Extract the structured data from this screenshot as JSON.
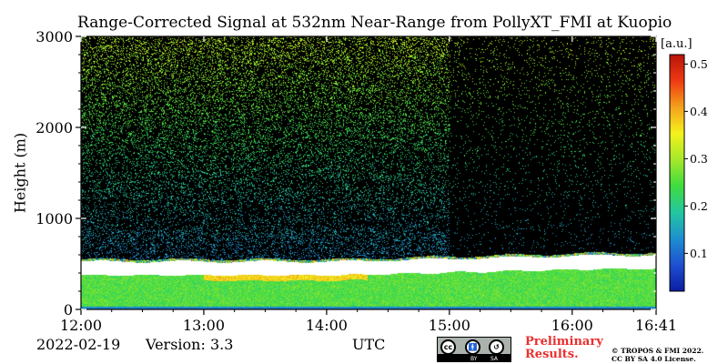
{
  "header": {
    "title": "Range-Corrected Signal at 532nm Near-Range from PollyXT_FMI at Kuopio"
  },
  "footer": {
    "date": "2022-02-19",
    "version": "Version: 3.3",
    "xunit": "UTC",
    "license_badge": {
      "icons": [
        "cc-icon",
        "by-icon",
        "sa-icon"
      ],
      "labels": [
        "BY",
        "SA"
      ]
    },
    "preliminary_line1": "Preliminary",
    "preliminary_line2": "Results.",
    "copyright_line1": "© TROPOS & FMI 2022.",
    "copyright_line2": "CC BY SA 4.0 License."
  },
  "colors": {
    "background": "#000000",
    "preliminary": "#e8302e",
    "colormap": [
      "#0a1ea0",
      "#1f4fd1",
      "#1d8fd0",
      "#23c7a0",
      "#3fdc3f",
      "#a4e82a",
      "#f4f21d",
      "#f5a11c",
      "#ee3a12",
      "#b8140b"
    ]
  },
  "chart_data": {
    "type": "heatmap",
    "title": "Range-Corrected Signal at 532nm Near-Range from PollyXT_FMI at Kuopio",
    "xlabel": "UTC",
    "ylabel": "Height (m)",
    "xlim": [
      "12:00",
      "16:41"
    ],
    "xlim_minutes_after_1200": [
      0,
      281
    ],
    "xticks": [
      "12:00",
      "13:00",
      "14:00",
      "15:00",
      "16:00",
      "16:41"
    ],
    "ylim": [
      0,
      3000
    ],
    "yticks": [
      0,
      1000,
      2000,
      3000
    ],
    "colorbar": {
      "label": "[a.u.]",
      "range": [
        0.02,
        0.52
      ],
      "ticks": [
        0.1,
        0.2,
        0.3,
        0.4,
        0.5
      ],
      "colormap": "jet"
    },
    "features": {
      "saturated_layer_top_m": [
        530,
        600
      ],
      "saturated_layer_bottom_m": [
        380,
        450
      ],
      "boundary_layer_signal": 0.25,
      "noise_region": "sparse speckle above ~400 m, denser before 15:00"
    }
  }
}
